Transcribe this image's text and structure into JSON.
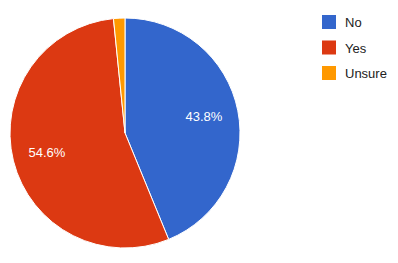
{
  "chart_data": {
    "type": "pie",
    "categories": [
      "No",
      "Yes",
      "Unsure"
    ],
    "values": [
      43.8,
      54.6,
      1.6
    ],
    "value_labels": [
      "43.8%",
      "54.6%",
      null
    ],
    "colors": [
      "#3366cc",
      "#dc3912",
      "#ff9900"
    ],
    "data_labels": true,
    "legend": "right"
  }
}
